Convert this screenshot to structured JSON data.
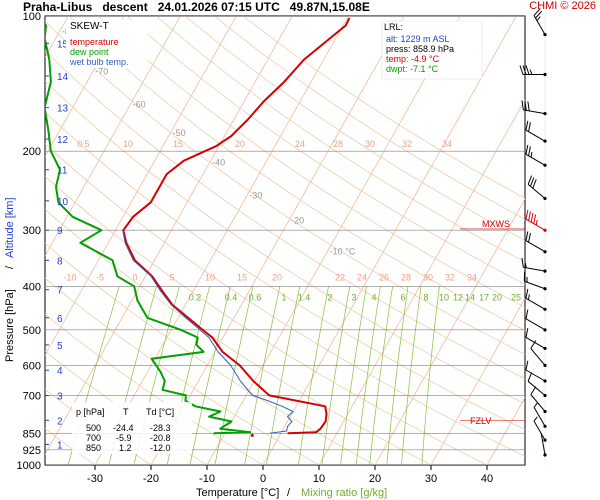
{
  "header": {
    "title": "Praha-Libus   descent   24.01.2026 07:15 UTC   49.87N,15.08E",
    "credit": "CHMI © 2026"
  },
  "legend": {
    "name": "SKEW-T",
    "temperature": "temperature",
    "dew_point": "dew point",
    "wet_bulb": "wet bulb temp."
  },
  "lrl_box": {
    "title": "LRL:",
    "alt": "alt: 1229 m ASL",
    "press": "press: 858.9 hPa",
    "temp": "temp: -4.9 °C",
    "dwpt": "dwpt: -7.1 °C"
  },
  "table": {
    "headers": [
      "p [hPa]",
      "T",
      "Td [°C]"
    ],
    "rows": [
      [
        "500",
        "-24.4",
        "-28.3"
      ],
      [
        "700",
        "-5.9",
        "-20.8"
      ],
      [
        "850",
        "1.2",
        "-12.0"
      ]
    ]
  },
  "levels": {
    "mxws": "MXWS",
    "fzlv": "FZLV"
  },
  "colors": {
    "temperature": "#d40000",
    "dew_point": "#00a000",
    "wet_bulb": "#3060c0",
    "isotherm": "#f0b090",
    "adiabat": "#e8c8a0",
    "mixing_ratio": "#88c040",
    "title_red": "#d00000"
  },
  "chart_data": {
    "type": "line",
    "title": "SKEW-T",
    "xlabel": "Temperature [°C]",
    "xlabel_extra": "Mixing ratio [g/kg]",
    "xlabel_sep": "/",
    "ylabel": "Pressure [hPa]",
    "ylabel_extra": "Altitude [km]",
    "ylabel_sep": "/",
    "xlim": [
      -35,
      45
    ],
    "ylim": [
      1000,
      100
    ],
    "x_ticks": [
      -30,
      -20,
      -10,
      0,
      10,
      20,
      30,
      40
    ],
    "y_ticks": [
      100,
      200,
      300,
      400,
      500,
      600,
      700,
      850,
      925,
      1000
    ],
    "alt_km_ticks": [
      1,
      2,
      3,
      4,
      5,
      6,
      7,
      8,
      9,
      10,
      11,
      12,
      13,
      14,
      15
    ],
    "isotherm_labels": [
      -80,
      -70,
      -60,
      -50,
      -40,
      -30,
      -20,
      -10
    ],
    "isotherm_label_unit": "°C",
    "theta_labels_top": [
      0,
      5,
      10,
      15,
      20,
      24,
      28,
      30,
      32,
      34
    ],
    "theta_labels_mid": [
      -10,
      -5,
      0,
      5,
      10,
      15,
      20,
      22,
      24,
      26,
      28,
      30,
      32,
      34
    ],
    "mixing_ratio_labels": [
      "0.2",
      "0.4",
      "0.6",
      "1",
      "1.4",
      "2",
      "3",
      "4",
      "6",
      "8",
      "10",
      "12",
      "14",
      "17",
      "20",
      "25"
    ],
    "series": [
      {
        "name": "temperature",
        "points": [
          [
            850,
            1.2
          ],
          [
            845,
            6.2
          ],
          [
            830,
            6.6
          ],
          [
            800,
            6.8
          ],
          [
            770,
            6.2
          ],
          [
            740,
            5.2
          ],
          [
            700,
            -5.9
          ],
          [
            650,
            -10.2
          ],
          [
            600,
            -14.2
          ],
          [
            560,
            -18.6
          ],
          [
            520,
            -21.9
          ],
          [
            500,
            -24.4
          ],
          [
            470,
            -28.2
          ],
          [
            440,
            -32.3
          ],
          [
            410,
            -35.5
          ],
          [
            380,
            -38.8
          ],
          [
            350,
            -43.5
          ],
          [
            320,
            -46.8
          ],
          [
            300,
            -48.6
          ],
          [
            280,
            -48.2
          ],
          [
            260,
            -46.5
          ],
          [
            240,
            -46.5
          ],
          [
            225,
            -46.5
          ],
          [
            210,
            -44.8
          ],
          [
            195,
            -40.5
          ],
          [
            185,
            -38.8
          ],
          [
            170,
            -37.5
          ],
          [
            155,
            -36.5
          ],
          [
            140,
            -34.8
          ],
          [
            125,
            -33.5
          ],
          [
            112,
            -31.0
          ],
          [
            105,
            -29.5
          ],
          [
            101,
            -29.6
          ]
        ]
      },
      {
        "name": "dew point",
        "points": [
          [
            850,
            -12.0
          ],
          [
            845,
            -5.6
          ],
          [
            830,
            -11.3
          ],
          [
            800,
            -10.0
          ],
          [
            780,
            -14.5
          ],
          [
            760,
            -13.0
          ],
          [
            740,
            -18.0
          ],
          [
            720,
            -20.3
          ],
          [
            700,
            -20.8
          ],
          [
            680,
            -25.5
          ],
          [
            650,
            -26.0
          ],
          [
            620,
            -27.7
          ],
          [
            580,
            -30.6
          ],
          [
            560,
            -22.0
          ],
          [
            540,
            -24.0
          ],
          [
            520,
            -24.5
          ],
          [
            500,
            -28.3
          ],
          [
            470,
            -35.5
          ],
          [
            430,
            -39.0
          ],
          [
            400,
            -41.0
          ],
          [
            380,
            -45.0
          ],
          [
            350,
            -47.5
          ],
          [
            320,
            -55.0
          ],
          [
            300,
            -52.5
          ],
          [
            280,
            -59.0
          ],
          [
            260,
            -63.0
          ],
          [
            240,
            -65.0
          ],
          [
            220,
            -66.0
          ],
          [
            200,
            -69.5
          ],
          [
            180,
            -72.0
          ],
          [
            160,
            -75.0
          ],
          [
            140,
            -76.5
          ],
          [
            125,
            -79.0
          ],
          [
            112,
            -82.0
          ],
          [
            105,
            -83.0
          ],
          [
            101,
            -85.0
          ]
        ]
      },
      {
        "name": "wet bulb temp.",
        "points": [
          [
            850,
            -2.0
          ],
          [
            840,
            0.8
          ],
          [
            820,
            0.5
          ],
          [
            800,
            0.8
          ],
          [
            780,
            -0.5
          ],
          [
            760,
            0.0
          ],
          [
            740,
            -2.5
          ],
          [
            720,
            -5.5
          ],
          [
            700,
            -8.9
          ],
          [
            650,
            -12.5
          ],
          [
            600,
            -15.8
          ],
          [
            560,
            -19.4
          ],
          [
            520,
            -22.5
          ],
          [
            500,
            -24.9
          ],
          [
            470,
            -28.6
          ],
          [
            440,
            -32.5
          ],
          [
            410,
            -35.8
          ],
          [
            380,
            -39.0
          ],
          [
            350,
            -43.8
          ],
          [
            320,
            -47.0
          ],
          [
            300,
            -48.7
          ]
        ]
      }
    ],
    "wind_barbs": [
      {
        "p": 110,
        "dir": 330,
        "spd": 25
      },
      {
        "p": 135,
        "dir": 270,
        "spd": 35
      },
      {
        "p": 165,
        "dir": 280,
        "spd": 30
      },
      {
        "p": 190,
        "dir": 300,
        "spd": 20
      },
      {
        "p": 215,
        "dir": 300,
        "spd": 25
      },
      {
        "p": 255,
        "dir": 310,
        "spd": 30
      },
      {
        "p": 300,
        "dir": 300,
        "spd": 45
      },
      {
        "p": 335,
        "dir": 300,
        "spd": 20
      },
      {
        "p": 370,
        "dir": 280,
        "spd": 15
      },
      {
        "p": 405,
        "dir": 290,
        "spd": 15
      },
      {
        "p": 450,
        "dir": 300,
        "spd": 15
      },
      {
        "p": 500,
        "dir": 300,
        "spd": 10
      },
      {
        "p": 550,
        "dir": 300,
        "spd": 10
      },
      {
        "p": 600,
        "dir": 320,
        "spd": 10
      },
      {
        "p": 650,
        "dir": 300,
        "spd": 10
      },
      {
        "p": 700,
        "dir": 310,
        "spd": 10
      },
      {
        "p": 760,
        "dir": 320,
        "spd": 10
      },
      {
        "p": 820,
        "dir": 330,
        "spd": 5
      },
      {
        "p": 880,
        "dir": 330,
        "spd": 5
      },
      {
        "p": 950,
        "dir": 350,
        "spd": 0
      }
    ],
    "mxws_p": 298,
    "fzlv_p": 797,
    "lrl_p": 858.9
  }
}
